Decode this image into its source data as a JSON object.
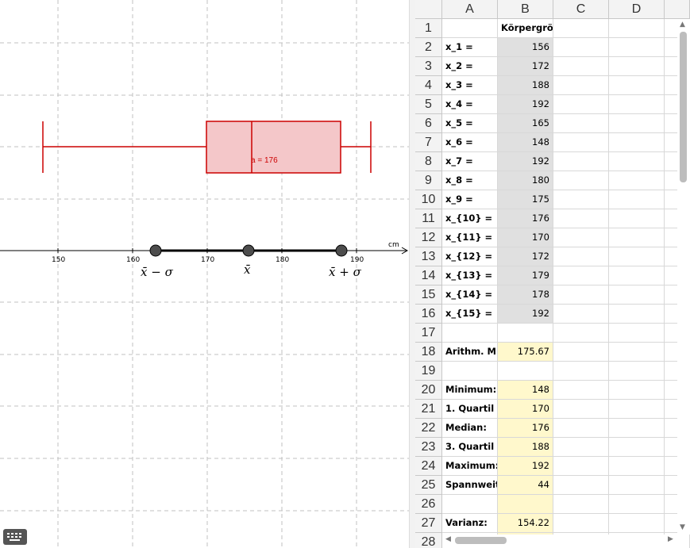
{
  "graphics": {
    "axis_unit": "cm",
    "ticks": [
      "150",
      "160",
      "170",
      "180",
      "190"
    ],
    "boxplot_label": "a = 176",
    "point_labels": {
      "minus": "x̄ − σ",
      "mean": "x̄",
      "plus": "x̄ + σ"
    },
    "boxplot_color": "#cc0000",
    "boxplot_fill": "#f4c7c9"
  },
  "sheet": {
    "columns": [
      "A",
      "B",
      "C",
      "D"
    ],
    "rows": [
      {
        "n": "1",
        "a": "",
        "b": "Körpergröße",
        "style": "head"
      },
      {
        "n": "2",
        "a": "x_1 =",
        "b": "156",
        "style": "grey"
      },
      {
        "n": "3",
        "a": "x_2 =",
        "b": "172",
        "style": "grey"
      },
      {
        "n": "4",
        "a": "x_3 =",
        "b": "188",
        "style": "grey"
      },
      {
        "n": "5",
        "a": "x_4 =",
        "b": "192",
        "style": "grey"
      },
      {
        "n": "6",
        "a": "x_5 =",
        "b": "165",
        "style": "grey"
      },
      {
        "n": "7",
        "a": "x_6 =",
        "b": "148",
        "style": "grey"
      },
      {
        "n": "8",
        "a": "x_7 =",
        "b": "192",
        "style": "grey"
      },
      {
        "n": "9",
        "a": "x_8 =",
        "b": "180",
        "style": "grey"
      },
      {
        "n": "10",
        "a": "x_9 =",
        "b": "175",
        "style": "grey"
      },
      {
        "n": "11",
        "a": "x_{10} =",
        "b": "176",
        "style": "grey"
      },
      {
        "n": "12",
        "a": "x_{11} =",
        "b": "170",
        "style": "grey"
      },
      {
        "n": "13",
        "a": "x_{12} =",
        "b": "172",
        "style": "grey"
      },
      {
        "n": "14",
        "a": "x_{13} =",
        "b": "179",
        "style": "grey"
      },
      {
        "n": "15",
        "a": "x_{14} =",
        "b": "178",
        "style": "grey"
      },
      {
        "n": "16",
        "a": "x_{15} =",
        "b": "192",
        "style": "grey"
      },
      {
        "n": "17",
        "a": "",
        "b": "",
        "style": "plain"
      },
      {
        "n": "18",
        "a": "Arithm. Mittel:",
        "b": "175.67",
        "style": "yellow"
      },
      {
        "n": "19",
        "a": "",
        "b": "",
        "style": "plain"
      },
      {
        "n": "20",
        "a": "Minimum:",
        "b": "148",
        "style": "yellow"
      },
      {
        "n": "21",
        "a": "1. Quartil",
        "b": "170",
        "style": "yellow"
      },
      {
        "n": "22",
        "a": "Median:",
        "b": "176",
        "style": "yellow"
      },
      {
        "n": "23",
        "a": "3. Quartil",
        "b": "188",
        "style": "yellow"
      },
      {
        "n": "24",
        "a": "Maximum:",
        "b": "192",
        "style": "yellow"
      },
      {
        "n": "25",
        "a": "Spannweite:",
        "b": "44",
        "style": "yellow"
      },
      {
        "n": "26",
        "a": "",
        "b": "",
        "style": "yellow"
      },
      {
        "n": "27",
        "a": "Varianz:",
        "b": "154.22",
        "style": "yellow"
      },
      {
        "n": "28",
        "a": "",
        "b": "",
        "style": "yellow"
      }
    ]
  }
}
